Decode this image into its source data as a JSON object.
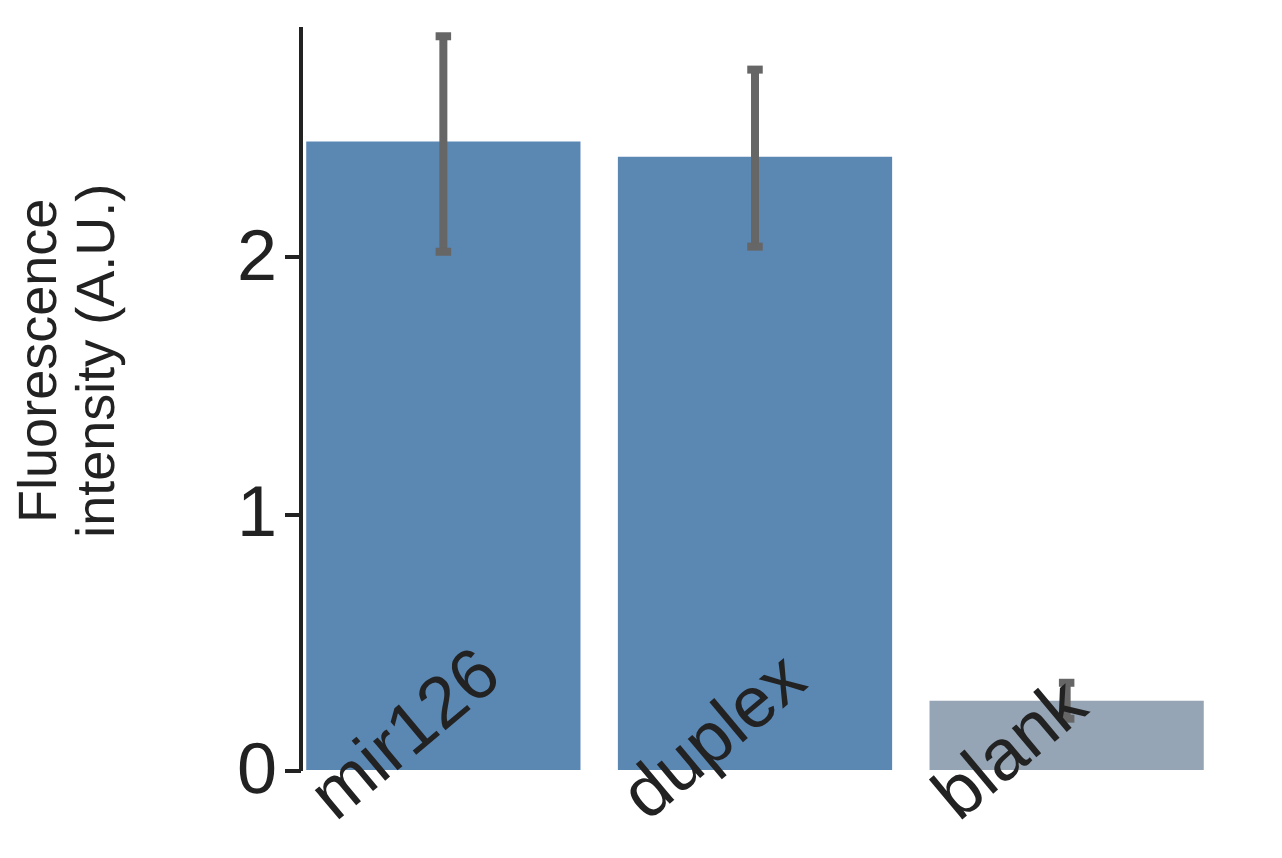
{
  "chart_data": {
    "type": "bar",
    "ylabel": "Fluorescence\nintensity (A.U.)",
    "categories": [
      "mir126",
      "duplex",
      "blank"
    ],
    "values": [
      2.45,
      2.39,
      0.27
    ],
    "colors": [
      "#5b87b3",
      "#5b87b3",
      "#95a5b5"
    ],
    "errors": [
      [
        2.02,
        2.86
      ],
      [
        2.04,
        2.73
      ],
      [
        0.2,
        0.34
      ]
    ],
    "ylim": [
      0,
      2.9
    ],
    "yticks": [
      0,
      {
        "value": 1,
        "label": "1"
      },
      {
        "value": 2,
        "label": "2"
      }
    ],
    "grid": false
  }
}
